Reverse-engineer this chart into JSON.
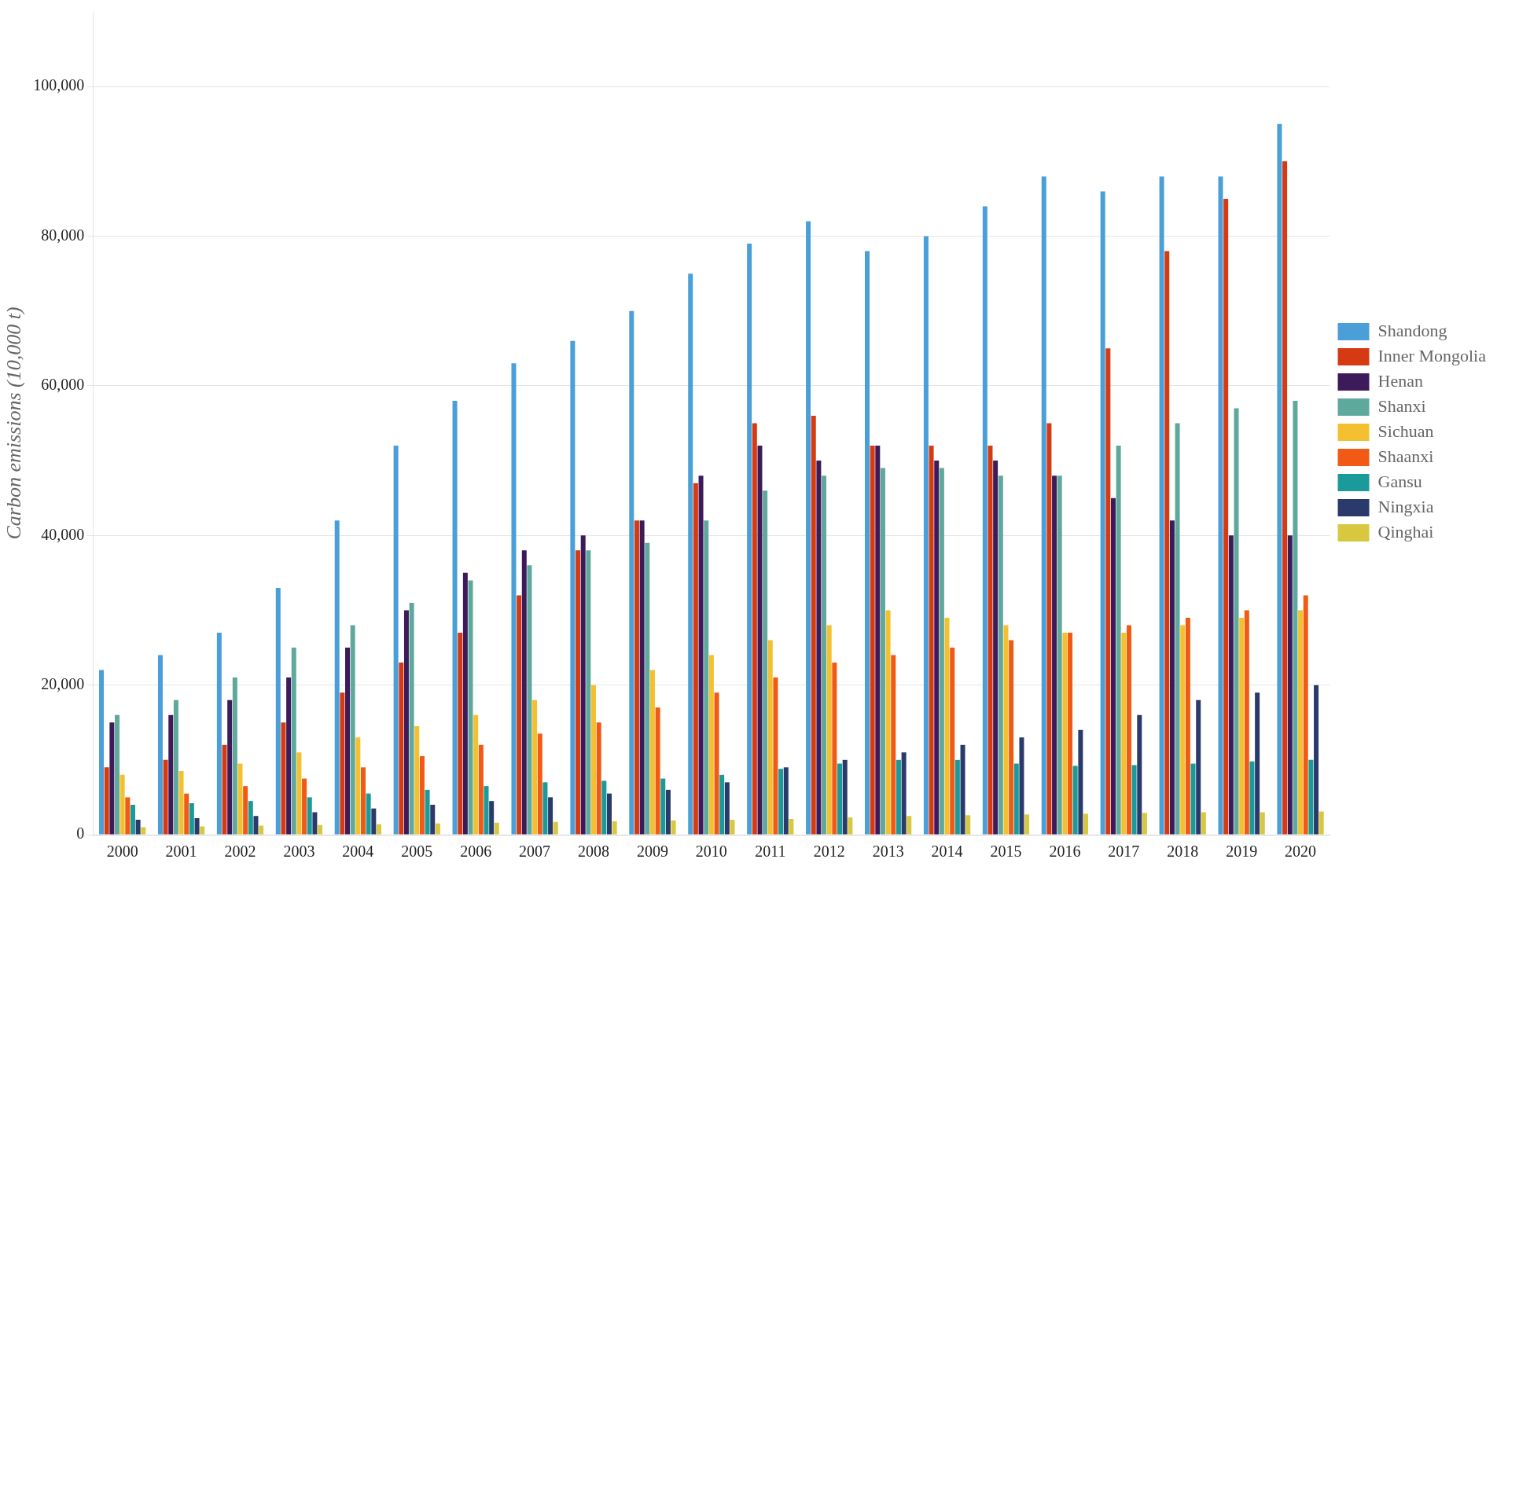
{
  "chart_data": {
    "type": "bar",
    "ylabel": "Carbon emissions (10,000 t)",
    "categories": [
      "2000",
      "2001",
      "2002",
      "2003",
      "2004",
      "2005",
      "2006",
      "2007",
      "2008",
      "2009",
      "2010",
      "2011",
      "2012",
      "2013",
      "2014",
      "2015",
      "2016",
      "2017",
      "2018",
      "2019",
      "2020"
    ],
    "series": [
      {
        "name": "Shandong",
        "color": "#4a9fd8",
        "values": [
          22000,
          24000,
          27000,
          33000,
          42000,
          52000,
          58000,
          63000,
          66000,
          70000,
          75000,
          79000,
          82000,
          78000,
          80000,
          84000,
          88000,
          86000,
          88000,
          88000,
          95000
        ]
      },
      {
        "name": "Inner Mongolia",
        "color": "#d63a12",
        "values": [
          9000,
          10000,
          12000,
          15000,
          19000,
          23000,
          27000,
          32000,
          38000,
          42000,
          47000,
          55000,
          56000,
          52000,
          52000,
          52000,
          55000,
          65000,
          78000,
          85000,
          90000
        ]
      },
      {
        "name": "Henan",
        "color": "#3d1a5a",
        "values": [
          15000,
          16000,
          18000,
          21000,
          25000,
          30000,
          35000,
          38000,
          40000,
          42000,
          48000,
          52000,
          50000,
          52000,
          50000,
          50000,
          48000,
          45000,
          42000,
          40000,
          40000
        ]
      },
      {
        "name": "Shanxi",
        "color": "#5fa89c",
        "values": [
          16000,
          18000,
          21000,
          25000,
          28000,
          31000,
          34000,
          36000,
          38000,
          39000,
          42000,
          46000,
          48000,
          49000,
          49000,
          48000,
          48000,
          52000,
          55000,
          57000,
          58000
        ]
      },
      {
        "name": "Sichuan",
        "color": "#f5c030",
        "values": [
          8000,
          8500,
          9500,
          11000,
          13000,
          14500,
          16000,
          18000,
          20000,
          22000,
          24000,
          26000,
          28000,
          30000,
          29000,
          28000,
          27000,
          27000,
          28000,
          29000,
          30000
        ]
      },
      {
        "name": "Shaanxi",
        "color": "#f05a14",
        "values": [
          5000,
          5500,
          6500,
          7500,
          9000,
          10500,
          12000,
          13500,
          15000,
          17000,
          19000,
          21000,
          23000,
          24000,
          25000,
          26000,
          27000,
          28000,
          29000,
          30000,
          32000
        ]
      },
      {
        "name": "Gansu",
        "color": "#1a9a9a",
        "values": [
          4000,
          4200,
          4500,
          5000,
          5500,
          6000,
          6500,
          7000,
          7200,
          7500,
          8000,
          8800,
          9500,
          10000,
          10000,
          9500,
          9200,
          9300,
          9500,
          9800,
          10000
        ]
      },
      {
        "name": "Ningxia",
        "color": "#2a3a6a",
        "values": [
          2000,
          2200,
          2500,
          3000,
          3500,
          4000,
          4500,
          5000,
          5500,
          6000,
          7000,
          9000,
          10000,
          11000,
          12000,
          13000,
          14000,
          16000,
          18000,
          19000,
          20000
        ]
      },
      {
        "name": "Qinghai",
        "color": "#d8c840",
        "values": [
          1000,
          1100,
          1200,
          1300,
          1400,
          1500,
          1600,
          1700,
          1800,
          1900,
          2000,
          2100,
          2300,
          2500,
          2600,
          2700,
          2800,
          2900,
          3000,
          3000,
          3100
        ]
      }
    ],
    "ylim": [
      0,
      110000
    ],
    "yticks": [
      {
        "value": 0,
        "label": "0"
      },
      {
        "value": 20000,
        "label": "20,000"
      },
      {
        "value": 40000,
        "label": "40,000"
      },
      {
        "value": 60000,
        "label": "60,000"
      },
      {
        "value": 80000,
        "label": "80,000"
      },
      {
        "value": 100000,
        "label": "100,000"
      }
    ],
    "grid": "y",
    "legend": "right"
  }
}
